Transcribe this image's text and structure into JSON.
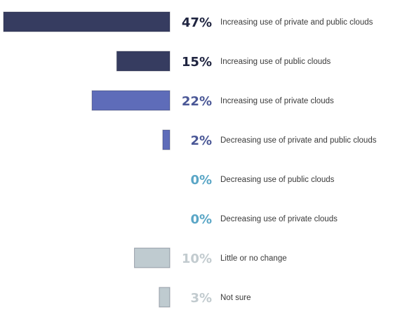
{
  "chart_data": {
    "type": "bar",
    "orientation": "horizontal",
    "title": "",
    "xlabel": "",
    "ylabel": "",
    "xlim": [
      0,
      47
    ],
    "grid": false,
    "categories": [
      "Increasing use of private and public clouds",
      "Increasing use of public clouds",
      "Increasing use of private clouds",
      "Decreasing use of private and public clouds",
      "Decreasing use of public clouds",
      "Decreasing use of private clouds",
      "Little or no change",
      "Not sure"
    ],
    "values": [
      47,
      15,
      22,
      2,
      0,
      0,
      10,
      3
    ],
    "value_labels": [
      "47%",
      "15%",
      "22%",
      "2%",
      "0%",
      "0%",
      "10%",
      "3%"
    ],
    "bar_colors": [
      "#363c60",
      "#363c60",
      "#5e6cb9",
      "#5e6cb9",
      "#5aa6c6",
      "#5aa6c6",
      "#bfcbd0",
      "#bfcbd0"
    ],
    "label_colors": [
      "#1f2440",
      "#1f2440",
      "#4a5796",
      "#4a5796",
      "#5aa6c6",
      "#5aa6c6",
      "#c2cbcf",
      "#c2cbcf"
    ]
  }
}
